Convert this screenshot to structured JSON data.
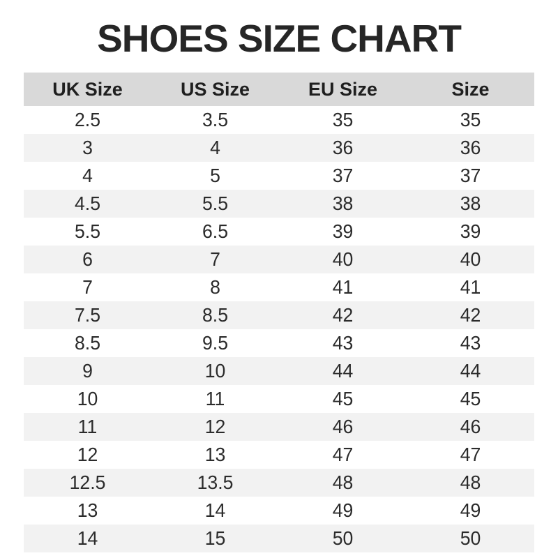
{
  "title": "SHOES SIZE CHART",
  "table": {
    "columns": [
      "UK Size",
      "US Size",
      "EU Size",
      "Size"
    ],
    "rows": [
      [
        "2.5",
        "3.5",
        "35",
        "35"
      ],
      [
        "3",
        "4",
        "36",
        "36"
      ],
      [
        "4",
        "5",
        "37",
        "37"
      ],
      [
        "4.5",
        "5.5",
        "38",
        "38"
      ],
      [
        "5.5",
        "6.5",
        "39",
        "39"
      ],
      [
        "6",
        "7",
        "40",
        "40"
      ],
      [
        "7",
        "8",
        "41",
        "41"
      ],
      [
        "7.5",
        "8.5",
        "42",
        "42"
      ],
      [
        "8.5",
        "9.5",
        "43",
        "43"
      ],
      [
        "9",
        "10",
        "44",
        "44"
      ],
      [
        "10",
        "11",
        "45",
        "45"
      ],
      [
        "11",
        "12",
        "46",
        "46"
      ],
      [
        "12",
        "13",
        "47",
        "47"
      ],
      [
        "12.5",
        "13.5",
        "48",
        "48"
      ],
      [
        "13",
        "14",
        "49",
        "49"
      ],
      [
        "14",
        "15",
        "50",
        "50"
      ]
    ]
  },
  "colors": {
    "header_bg": "#d9d9d9",
    "stripe_bg": "#f2f2f2",
    "title_text": "#262626",
    "cell_text": "#2b2b2b"
  },
  "chart_data": {
    "type": "table",
    "title": "SHOES SIZE CHART",
    "columns": [
      "UK Size",
      "US Size",
      "EU Size",
      "Size"
    ],
    "rows": [
      [
        2.5,
        3.5,
        35,
        35
      ],
      [
        3,
        4,
        36,
        36
      ],
      [
        4,
        5,
        37,
        37
      ],
      [
        4.5,
        5.5,
        38,
        38
      ],
      [
        5.5,
        6.5,
        39,
        39
      ],
      [
        6,
        7,
        40,
        40
      ],
      [
        7,
        8,
        41,
        41
      ],
      [
        7.5,
        8.5,
        42,
        42
      ],
      [
        8.5,
        9.5,
        43,
        43
      ],
      [
        9,
        10,
        44,
        44
      ],
      [
        10,
        11,
        45,
        45
      ],
      [
        11,
        12,
        46,
        46
      ],
      [
        12,
        13,
        47,
        47
      ],
      [
        12.5,
        13.5,
        48,
        48
      ],
      [
        13,
        14,
        49,
        49
      ],
      [
        14,
        15,
        50,
        50
      ]
    ],
    "layout": {
      "header_background": "#d9d9d9",
      "zebra_stripe_background": "#f2f2f2",
      "stripe_pattern": "even rows white, odd rows gray (1-indexed header excluded)"
    }
  }
}
